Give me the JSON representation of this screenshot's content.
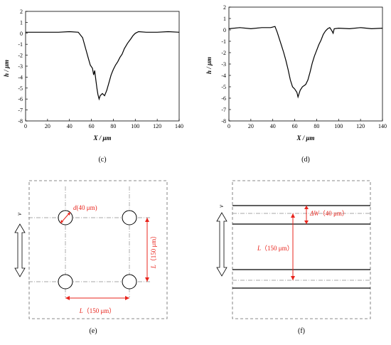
{
  "chart_data": [
    {
      "type": "line",
      "caption": "(c)",
      "xlabel": "X / μm",
      "ylabel": "h / μm",
      "xlim": [
        0,
        140
      ],
      "ylim": [
        -8,
        2
      ],
      "xticks": [
        0,
        20,
        40,
        60,
        80,
        100,
        120,
        140
      ],
      "yticks": [
        2,
        1,
        0,
        -1,
        -2,
        -3,
        -4,
        -5,
        -6,
        -7,
        -8
      ],
      "series": [
        {
          "x": [
            0,
            10,
            20,
            30,
            40,
            48,
            52,
            55,
            57,
            59,
            61,
            62,
            63,
            64,
            65,
            66,
            67,
            68,
            70,
            72,
            74,
            76,
            78,
            80,
            82,
            84,
            86,
            88,
            90,
            93,
            96,
            98,
            100,
            103,
            110,
            120,
            130,
            140
          ],
          "y": [
            0.1,
            0.1,
            0.1,
            0.1,
            0.15,
            0.1,
            -0.4,
            -1.5,
            -2.2,
            -2.9,
            -3.2,
            -3.8,
            -3.4,
            -4.2,
            -5.0,
            -5.6,
            -6.0,
            -5.7,
            -5.5,
            -5.7,
            -5.2,
            -4.5,
            -3.8,
            -3.3,
            -2.9,
            -2.6,
            -2.2,
            -1.9,
            -1.4,
            -0.9,
            -0.5,
            -0.2,
            0.0,
            0.15,
            0.1,
            0.1,
            0.15,
            0.1
          ]
        }
      ]
    },
    {
      "type": "line",
      "caption": "(d)",
      "xlabel": "X / μm",
      "ylabel": "h / μm",
      "xlim": [
        0,
        140
      ],
      "ylim": [
        -8,
        2
      ],
      "xticks": [
        0,
        20,
        40,
        60,
        80,
        100,
        120,
        140
      ],
      "yticks": [
        2,
        1,
        0,
        -1,
        -2,
        -3,
        -4,
        -5,
        -6,
        -7,
        -8
      ],
      "series": [
        {
          "x": [
            0,
            10,
            20,
            30,
            38,
            42,
            44,
            46,
            48,
            50,
            52,
            54,
            56,
            58,
            60,
            62,
            63,
            64,
            65,
            67,
            70,
            72,
            74,
            76,
            78,
            80,
            82,
            84,
            86,
            88,
            90,
            92,
            94,
            95,
            96,
            100,
            110,
            120,
            130,
            140
          ],
          "y": [
            0.1,
            0.2,
            0.1,
            0.2,
            0.2,
            0.3,
            -0.2,
            -0.8,
            -1.4,
            -2.0,
            -2.7,
            -3.5,
            -4.4,
            -5.0,
            -5.2,
            -5.5,
            -5.9,
            -5.6,
            -5.3,
            -5.0,
            -4.8,
            -4.4,
            -3.7,
            -2.9,
            -2.3,
            -1.8,
            -1.3,
            -0.9,
            -0.4,
            -0.1,
            0.1,
            0.2,
            -0.1,
            -0.3,
            0.1,
            0.15,
            0.1,
            0.2,
            0.1,
            0.15
          ]
        }
      ]
    }
  ],
  "diagram_e": {
    "caption": "(e)",
    "direction": "v",
    "diameter_label": "(40 μm)",
    "diameter_symbol": "d",
    "spacing_label": "（150 μm）",
    "spacing_symbol": "L",
    "vertical_spacing_label": "（150 μm）",
    "vertical_spacing_symbol": "L"
  },
  "diagram_f": {
    "caption": "(f)",
    "direction": "v",
    "width_label": "（40 μm）",
    "width_symbol": "ΔW",
    "spacing_label": "（150 μm）",
    "spacing_symbol": "L"
  },
  "colors": {
    "annotation": "#e8241c",
    "line": "#000000",
    "guide": "#8a8a8a"
  }
}
